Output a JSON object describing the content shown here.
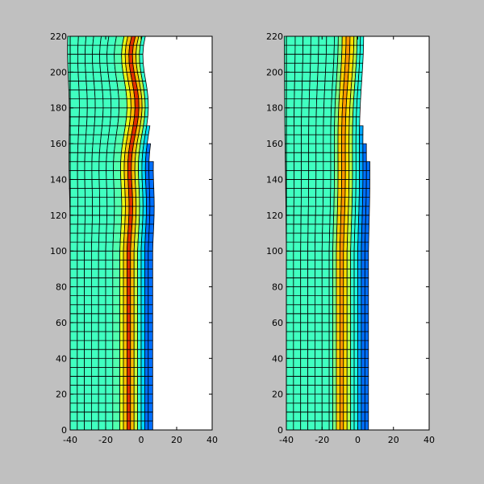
{
  "chart_data": [
    {
      "type": "heatmap",
      "title": "",
      "xlabel": "",
      "ylabel": "",
      "xlim": [
        -40,
        40
      ],
      "ylim": [
        0,
        220
      ],
      "x_ticks": [
        -40,
        -20,
        0,
        20,
        40
      ],
      "y_ticks": [
        0,
        20,
        40,
        60,
        80,
        100,
        120,
        140,
        160,
        180,
        200,
        220
      ],
      "x_tick_labels": [
        "-40",
        "-20",
        "0",
        "20",
        "40"
      ],
      "y_tick_labels": [
        "0",
        "20",
        "40",
        "60",
        "80",
        "100",
        "120",
        "140",
        "160",
        "180",
        "200",
        "220"
      ],
      "colormap": "jet",
      "grid": false,
      "mesh": {
        "columns_x": [
          -40,
          -36,
          -32,
          -28,
          -24,
          -20,
          -16,
          -12,
          -10,
          -8,
          -6,
          -4,
          -2,
          0,
          2,
          4,
          6.5
        ],
        "column_colors": [
          "#40ffc0",
          "#40ffc0",
          "#40ffc0",
          "#40ffc0",
          "#40ffc0",
          "#40ffc0",
          "#50ffae",
          "#e8ff18",
          "#ffc000",
          "#e03000",
          "#ffc000",
          "#c8ff38",
          "#30ffd0",
          "#00d8ff",
          "#0070ff",
          "#0070ff"
        ],
        "row_step": 5,
        "rows_y_max": 200,
        "distortion": "strong"
      }
    },
    {
      "type": "heatmap",
      "title": "",
      "xlabel": "",
      "ylabel": "",
      "xlim": [
        -40,
        40
      ],
      "ylim": [
        0,
        220
      ],
      "x_ticks": [
        -40,
        -20,
        0,
        20,
        40
      ],
      "y_ticks": [
        0,
        20,
        40,
        60,
        80,
        100,
        120,
        140,
        160,
        180,
        200,
        220
      ],
      "x_tick_labels": [
        "-40",
        "-20",
        "0",
        "20",
        "40"
      ],
      "y_tick_labels": [
        "0",
        "20",
        "40",
        "60",
        "80",
        "100",
        "120",
        "140",
        "160",
        "180",
        "200",
        "220"
      ],
      "colormap": "jet",
      "grid": false,
      "mesh": {
        "columns_x": [
          -40,
          -36,
          -32,
          -28,
          -24,
          -20,
          -16,
          -14,
          -12,
          -10,
          -8,
          -6,
          -4,
          -2,
          0,
          2,
          4,
          6
        ],
        "column_colors": [
          "#40ffc0",
          "#40ffc0",
          "#40ffc0",
          "#40ffc0",
          "#40ffc0",
          "#40ffc0",
          "#40ffc0",
          "#80ff80",
          "#ffd000",
          "#ff9800",
          "#ffe000",
          "#b8ff48",
          "#30ffd0",
          "#20ffe0",
          "#00a8ff",
          "#0070ff",
          "#0070ff"
        ],
        "row_step": 5,
        "rows_y_max": 200,
        "distortion": "mild"
      }
    }
  ]
}
